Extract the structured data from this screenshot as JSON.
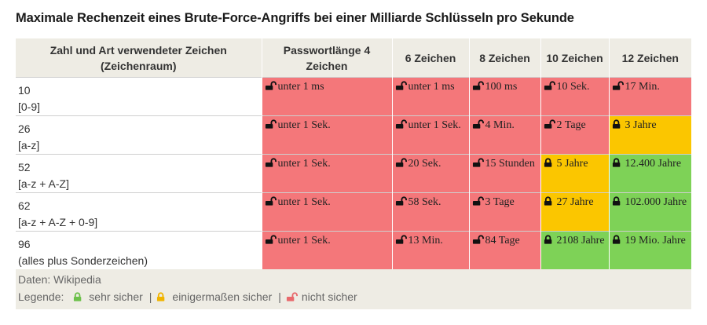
{
  "title": "Maximale Rechenzeit eines Brute-Force-Angriffs bei einer Milliarde Schlüsseln pro Sekunde",
  "colors": {
    "red": "#f4777a",
    "yellow": "#fbc600",
    "green": "#7ed257"
  },
  "headers": [
    "Zahl und Art verwendeter Zeichen (Zeichenraum)",
    "Passwortlänge 4 Zeichen",
    "6 Zeichen",
    "8 Zeichen",
    "10 Zeichen",
    "12 Zeichen"
  ],
  "rows": [
    {
      "count": "10",
      "space": "[0-9]",
      "cells": [
        {
          "text": "unter 1 ms",
          "level": "red"
        },
        {
          "text": "unter 1 ms",
          "level": "red"
        },
        {
          "text": "100 ms",
          "level": "red"
        },
        {
          "text": "10 Sek.",
          "level": "red"
        },
        {
          "text": "17 Min.",
          "level": "red"
        }
      ]
    },
    {
      "count": "26",
      "space": "[a-z]",
      "cells": [
        {
          "text": "unter 1 Sek.",
          "level": "red"
        },
        {
          "text": "unter 1 Sek.",
          "level": "red"
        },
        {
          "text": "4 Min.",
          "level": "red"
        },
        {
          "text": "2 Tage",
          "level": "red"
        },
        {
          "text": "3 Jahre",
          "level": "yellow"
        }
      ]
    },
    {
      "count": "52",
      "space": "[a-z + A-Z]",
      "cells": [
        {
          "text": "unter 1 Sek.",
          "level": "red"
        },
        {
          "text": "20 Sek.",
          "level": "red"
        },
        {
          "text": "15 Stunden",
          "level": "red"
        },
        {
          "text": "5 Jahre",
          "level": "yellow"
        },
        {
          "text": "12.400 Jahre",
          "level": "green"
        }
      ]
    },
    {
      "count": "62",
      "space": "[a-z + A-Z + 0-9]",
      "cells": [
        {
          "text": "unter 1 Sek.",
          "level": "red"
        },
        {
          "text": "58 Sek.",
          "level": "red"
        },
        {
          "text": "3 Tage",
          "level": "red"
        },
        {
          "text": "27 Jahre",
          "level": "yellow"
        },
        {
          "text": "102.000 Jahre",
          "level": "green"
        }
      ]
    },
    {
      "count": "96",
      "space": "(alles plus Sonderzeichen)",
      "cells": [
        {
          "text": "unter 1 Sek.",
          "level": "red"
        },
        {
          "text": "13 Min.",
          "level": "red"
        },
        {
          "text": "84 Tage",
          "level": "red"
        },
        {
          "text": "2108 Jahre",
          "level": "green"
        },
        {
          "text": "19 Mio. Jahre",
          "level": "green"
        }
      ]
    }
  ],
  "source": "Daten: Wikipedia",
  "legend": {
    "label": "Legende:",
    "items": [
      {
        "text": "sehr sicher",
        "level": "green",
        "icon": "lock-closed-icon"
      },
      {
        "text": "einigermaßen sicher",
        "level": "yellow",
        "icon": "lock-closed-icon"
      },
      {
        "text": "nicht sicher",
        "level": "red",
        "icon": "lock-open-icon"
      }
    ]
  }
}
